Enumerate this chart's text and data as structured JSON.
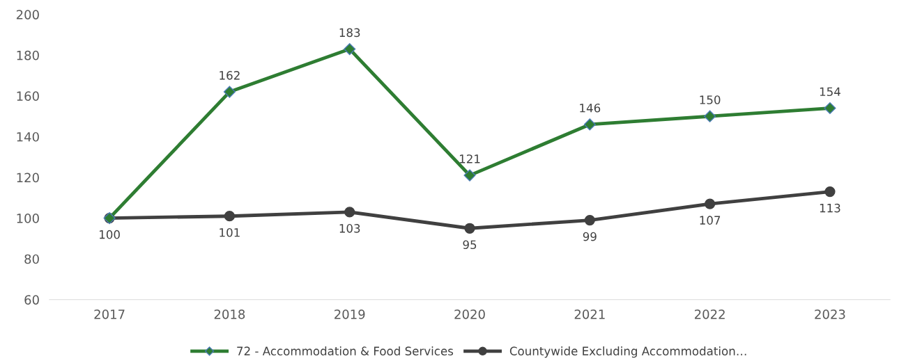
{
  "chart_data": {
    "type": "line",
    "categories": [
      "2017",
      "2018",
      "2019",
      "2020",
      "2021",
      "2022",
      "2023"
    ],
    "series": [
      {
        "name": "72 - Accommodation & Food Services",
        "color": "#2e7d32",
        "marker": "diamond",
        "values": [
          100,
          162,
          183,
          121,
          146,
          150,
          154
        ],
        "value_labels": [
          null,
          "162",
          "183",
          "121",
          "146",
          "150",
          "154"
        ]
      },
      {
        "name": "Countywide Excluding Accommodation…",
        "color": "#404040",
        "marker": "circle",
        "values": [
          100,
          101,
          103,
          95,
          99,
          107,
          113
        ],
        "value_labels": [
          "100",
          "101",
          "103",
          "95",
          "99",
          "107",
          "113"
        ]
      }
    ],
    "ylim": [
      60,
      200
    ],
    "yticks": [
      60,
      80,
      100,
      120,
      140,
      160,
      180,
      200
    ],
    "legend": "bottom",
    "line_style": "solid"
  }
}
